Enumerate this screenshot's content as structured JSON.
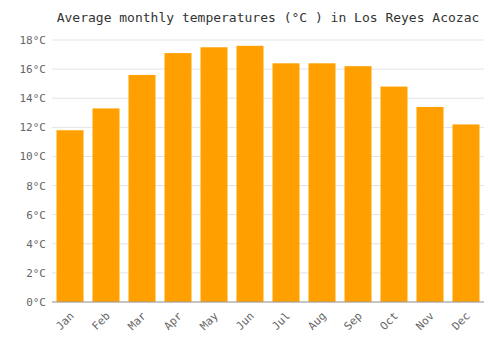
{
  "chart_data": {
    "type": "bar",
    "title": "Average monthly temperatures (°C ) in Los Reyes Acozac",
    "categories": [
      "Jan",
      "Feb",
      "Mar",
      "Apr",
      "May",
      "Jun",
      "Jul",
      "Aug",
      "Sep",
      "Oct",
      "Nov",
      "Dec"
    ],
    "values": [
      11.8,
      13.3,
      15.6,
      17.1,
      17.5,
      17.6,
      16.4,
      16.4,
      16.2,
      14.8,
      13.4,
      12.2
    ],
    "color": "#FFA000",
    "ylim": [
      0,
      18
    ],
    "yticks": [
      {
        "value": 0,
        "label": "0°C"
      },
      {
        "value": 2,
        "label": "2°C"
      },
      {
        "value": 4,
        "label": "4°C"
      },
      {
        "value": 6,
        "label": "6°C"
      },
      {
        "value": 8,
        "label": "8°C"
      },
      {
        "value": 10,
        "label": "10°C"
      },
      {
        "value": 12,
        "label": "12°C"
      },
      {
        "value": 14,
        "label": "14°C"
      },
      {
        "value": 16,
        "label": "16°C"
      },
      {
        "value": 18,
        "label": "18°C"
      }
    ],
    "grid": true
  }
}
